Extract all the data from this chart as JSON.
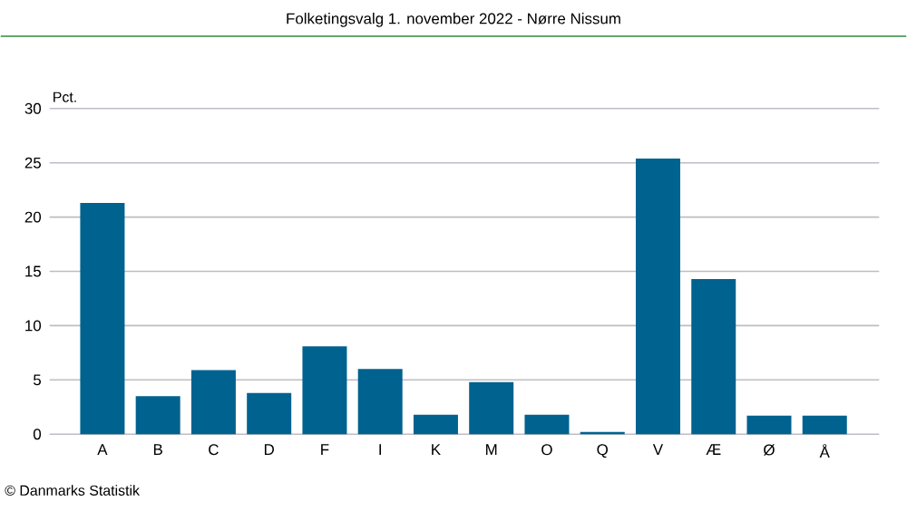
{
  "chart_data": {
    "type": "bar",
    "title": "Folketingsvalg 1. november 2022 - Nørre Nissum",
    "ylabel": "Pct.",
    "categories": [
      "A",
      "B",
      "C",
      "D",
      "F",
      "I",
      "K",
      "M",
      "O",
      "Q",
      "V",
      "Æ",
      "Ø",
      "Å"
    ],
    "values": [
      21.3,
      3.5,
      5.9,
      3.8,
      8.1,
      6.0,
      1.8,
      4.8,
      1.8,
      0.2,
      25.4,
      14.3,
      1.7,
      1.7
    ],
    "color": "#00628f",
    "ylim": [
      0,
      30
    ],
    "yticks": [
      0,
      5,
      10,
      15,
      20,
      25,
      30
    ],
    "grid": "y",
    "annotations": [
      "© Danmarks Statistik"
    ]
  }
}
